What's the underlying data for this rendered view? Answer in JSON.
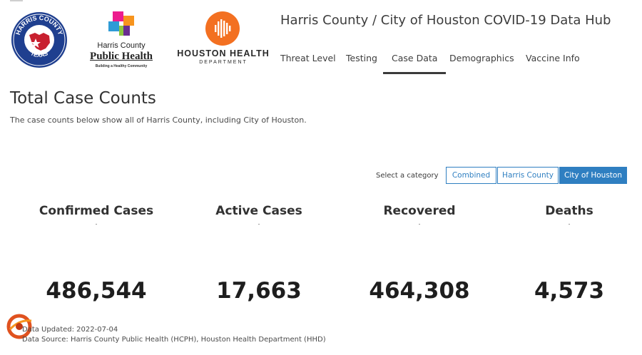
{
  "header": {
    "title": "Harris County / City of Houston COVID-19 Data Hub",
    "tabs": [
      {
        "label": "Threat Level"
      },
      {
        "label": "Testing"
      },
      {
        "label": "Case Data"
      },
      {
        "label": "Demographics"
      },
      {
        "label": "Vaccine Info"
      }
    ],
    "active_tab": "Case Data"
  },
  "logos": {
    "seal": {
      "top_text": "HARRIS COUNTY",
      "bottom_text": "TEXAS"
    },
    "hcph": {
      "line1": "Harris County",
      "line2": "Public Health",
      "tagline": "Building a Healthy Community"
    },
    "hhd": {
      "line1": "HOUSTON HEALTH",
      "line2": "DEPARTMENT"
    }
  },
  "section": {
    "title": "Total Case Counts",
    "subtitle": "The case counts below show all of Harris County, including City of Houston."
  },
  "category": {
    "label": "Select a category",
    "options": [
      {
        "label": "Combined"
      },
      {
        "label": "Harris County"
      },
      {
        "label": "City of Houston"
      }
    ],
    "selected": "City of Houston"
  },
  "stats": [
    {
      "label": "Confirmed Cases",
      "value": "486,544"
    },
    {
      "label": "Active Cases",
      "value": "17,663"
    },
    {
      "label": "Recovered",
      "value": "464,308"
    },
    {
      "label": "Deaths",
      "value": "4,573"
    }
  ],
  "footer": {
    "updated": "Data Updated: 2022-07-04",
    "source": "Data Source: Harris County Public Health (HCPH), Houston Health Department (HHD)"
  },
  "colors": {
    "accent": "#2f7fc1",
    "hhd_orange": "#f37021",
    "seal_blue": "#1f3f8f",
    "seal_red": "#c8202f"
  }
}
